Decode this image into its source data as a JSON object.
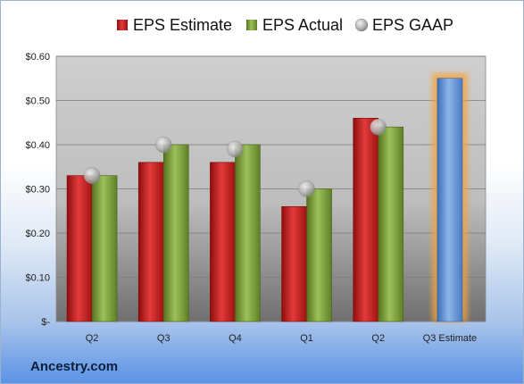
{
  "chart_data": {
    "type": "bar",
    "categories": [
      "Q2",
      "Q3",
      "Q4",
      "Q1",
      "Q2",
      "Q3 Estimate"
    ],
    "series": [
      {
        "name": "EPS Estimate",
        "type": "bar",
        "color": "#c81e1e",
        "values": [
          0.33,
          0.36,
          0.36,
          0.26,
          0.46,
          null
        ]
      },
      {
        "name": "EPS Actual",
        "type": "bar",
        "color": "#7a9e3c",
        "values": [
          0.33,
          0.4,
          0.4,
          0.3,
          0.44,
          null
        ]
      },
      {
        "name": "EPS GAAP",
        "type": "scatter",
        "color": "#b9b9b9",
        "values": [
          0.33,
          0.4,
          0.39,
          0.3,
          0.44,
          null
        ]
      }
    ],
    "highlight": {
      "category": "Q3 Estimate",
      "value": 0.55,
      "color": "#6a9ad8",
      "glow": "#f5a33a"
    },
    "y_ticks": [
      "$-",
      "$0.10",
      "$0.20",
      "$0.30",
      "$0.40",
      "$0.50",
      "$0.60"
    ],
    "ylim": [
      0,
      0.6
    ],
    "legend": "top",
    "grid": true
  },
  "brand": "Ancestry.com"
}
